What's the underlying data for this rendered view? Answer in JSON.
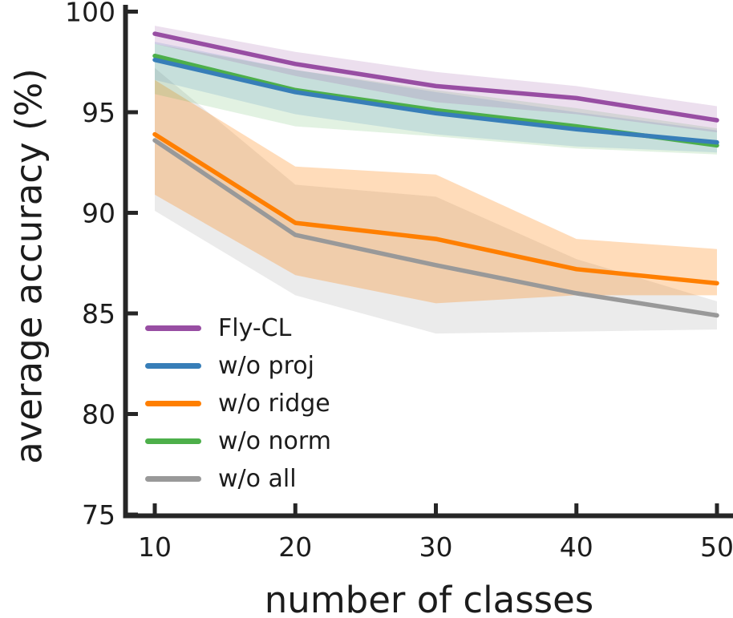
{
  "figure": {
    "background": "#ffffff",
    "text_color": "#1c1c1c",
    "axis_color": "#262626"
  },
  "chart_data": {
    "type": "line",
    "title": "",
    "xlabel": "number of classes",
    "ylabel": "average accuracy (%)",
    "x": [
      10,
      20,
      30,
      40,
      50
    ],
    "xticks": [
      10,
      20,
      30,
      40,
      50
    ],
    "yticks": [
      75,
      80,
      85,
      90,
      95,
      100
    ],
    "ylim": [
      75,
      100
    ],
    "grid": false,
    "legend_position": "lower left",
    "legend_frame": false,
    "band_style": "shaded std/confidence band around each line",
    "series": [
      {
        "name": "fly-cl",
        "label": "Fly-CL",
        "color": "#984ea3",
        "values": [
          98.9,
          97.4,
          96.3,
          95.7,
          94.6
        ],
        "band_lower": [
          98.4,
          96.8,
          95.5,
          94.9,
          94.0
        ],
        "band_upper": [
          99.3,
          98.0,
          97.0,
          96.3,
          95.3
        ],
        "band_opacity": 0.18
      },
      {
        "name": "wo-proj",
        "label": "w/o proj",
        "color": "#377eb8",
        "values": [
          97.6,
          96.0,
          94.95,
          94.15,
          93.5
        ],
        "band_lower": [
          96.6,
          94.9,
          93.9,
          93.3,
          93.0
        ],
        "band_upper": [
          98.5,
          97.1,
          96.0,
          95.0,
          94.1
        ],
        "band_opacity": 0.16
      },
      {
        "name": "wo-ridge",
        "label": "w/o ridge",
        "color": "#ff7f00",
        "values": [
          93.9,
          89.5,
          88.7,
          87.2,
          86.5
        ],
        "band_lower": [
          90.9,
          86.9,
          85.5,
          85.9,
          85.9
        ],
        "band_upper": [
          96.6,
          92.3,
          91.9,
          88.7,
          88.2
        ],
        "band_opacity": 0.27
      },
      {
        "name": "wo-norm",
        "label": "w/o norm",
        "color": "#4daf4a",
        "values": [
          97.8,
          96.1,
          95.1,
          94.3,
          93.35
        ],
        "band_lower": [
          95.9,
          94.3,
          93.8,
          93.2,
          92.9
        ],
        "band_upper": [
          98.4,
          97.1,
          96.1,
          95.2,
          94.2
        ],
        "band_opacity": 0.16
      },
      {
        "name": "wo-all",
        "label": "w/o all",
        "color": "#999999",
        "values": [
          93.6,
          88.9,
          87.4,
          86.0,
          84.9
        ],
        "band_lower": [
          90.1,
          85.9,
          84.0,
          84.1,
          84.2
        ],
        "band_upper": [
          97.2,
          91.4,
          90.8,
          87.7,
          85.6
        ],
        "band_opacity": 0.2
      }
    ]
  }
}
